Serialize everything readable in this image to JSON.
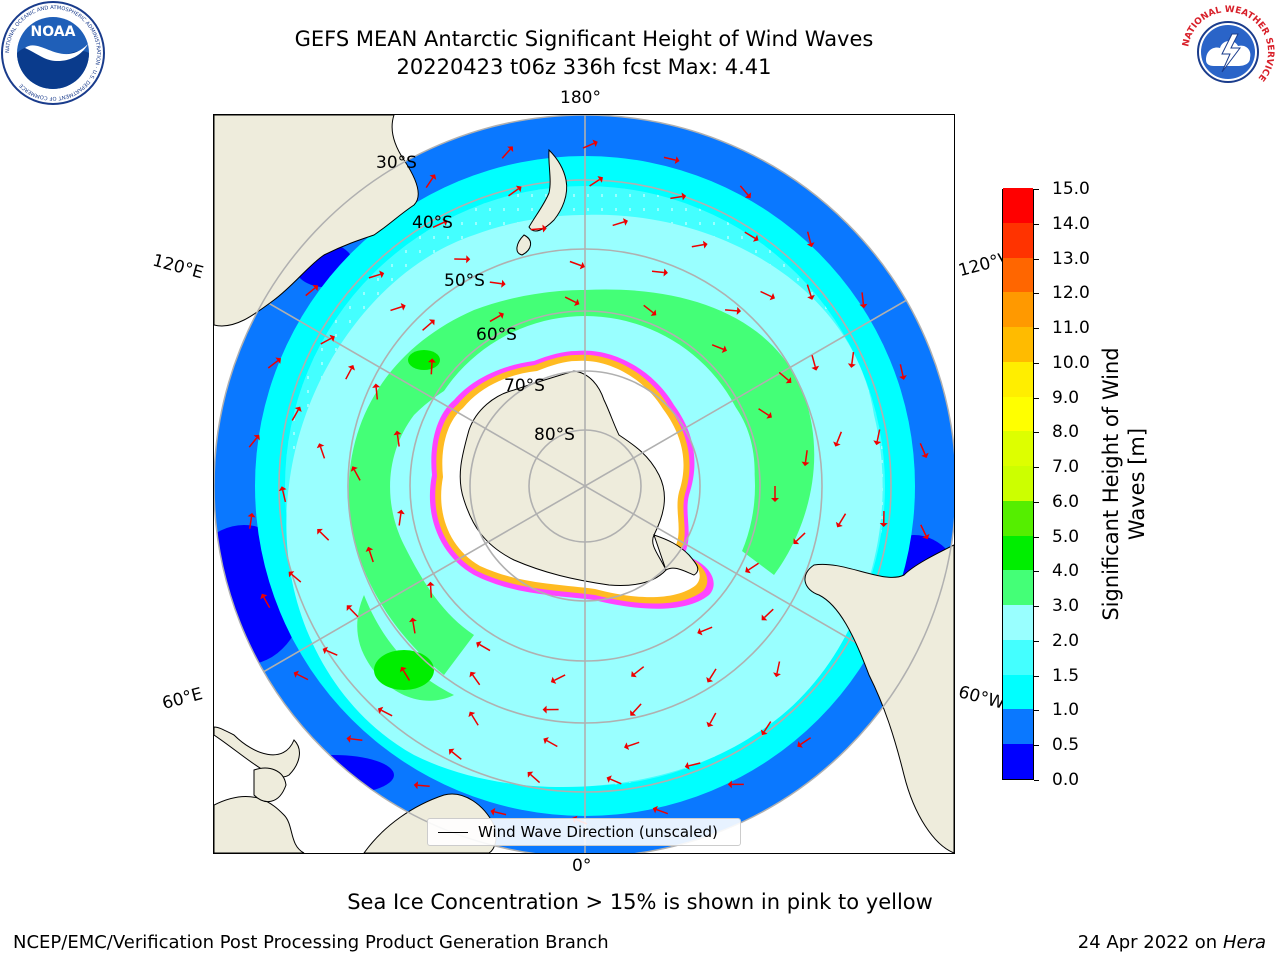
{
  "header": {
    "title_line1": "GEFS MEAN Antarctic Significant Height of Wind Waves",
    "title_line2": "20220423 t06z 336h fcst   Max: 4.41"
  },
  "logos": {
    "noaa_text": "NOAA",
    "noaa_ring_text": "NATIONAL OCEANIC AND ATMOSPHERIC ADMINISTRATION · U.S. DEPARTMENT OF COMMERCE",
    "nws_ring_text": "NATIONAL WEATHER SERVICE"
  },
  "map": {
    "projection": "south-polar-stereographic",
    "longitude_labels": [
      "180°",
      "120°E",
      "120°W",
      "60°E",
      "60°W",
      "0°"
    ],
    "latitude_labels": [
      "30°S",
      "40°S",
      "50°S",
      "60°S",
      "70°S",
      "80°S"
    ],
    "legend_label": "Wind Wave Direction (unscaled)",
    "colors": {
      "land": "#eeecdc",
      "ice": "#ffffff",
      "ice_edge": [
        "#ff44ff",
        "#ffbb22"
      ],
      "arrows": "#ee0000",
      "graticule": "#b0b0b0"
    }
  },
  "colorbar": {
    "title": "Significant Height of Wind Waves [m]",
    "ticks": [
      "0.0",
      "0.5",
      "1.0",
      "1.5",
      "2.0",
      "3.0",
      "4.0",
      "5.0",
      "6.0",
      "7.0",
      "8.0",
      "9.0",
      "10.0",
      "11.0",
      "12.0",
      "13.0",
      "14.0",
      "15.0"
    ],
    "colors": [
      "#0000ff",
      "#0a78ff",
      "#00ffff",
      "#44ffff",
      "#99ffff",
      "#44ff77",
      "#00ee00",
      "#55ee00",
      "#ccff00",
      "#ddff00",
      "#ffff00",
      "#ffee00",
      "#ffbb00",
      "#ff9900",
      "#ff6600",
      "#ff3300",
      "#ff0000"
    ]
  },
  "note": "Sea Ice Concentration > 15% is shown in pink to yellow",
  "footer": {
    "left": "NCEP/EMC/Verification Post Processing Product Generation Branch",
    "right_date": "24 Apr 2022 on ",
    "right_host": "Hera"
  }
}
